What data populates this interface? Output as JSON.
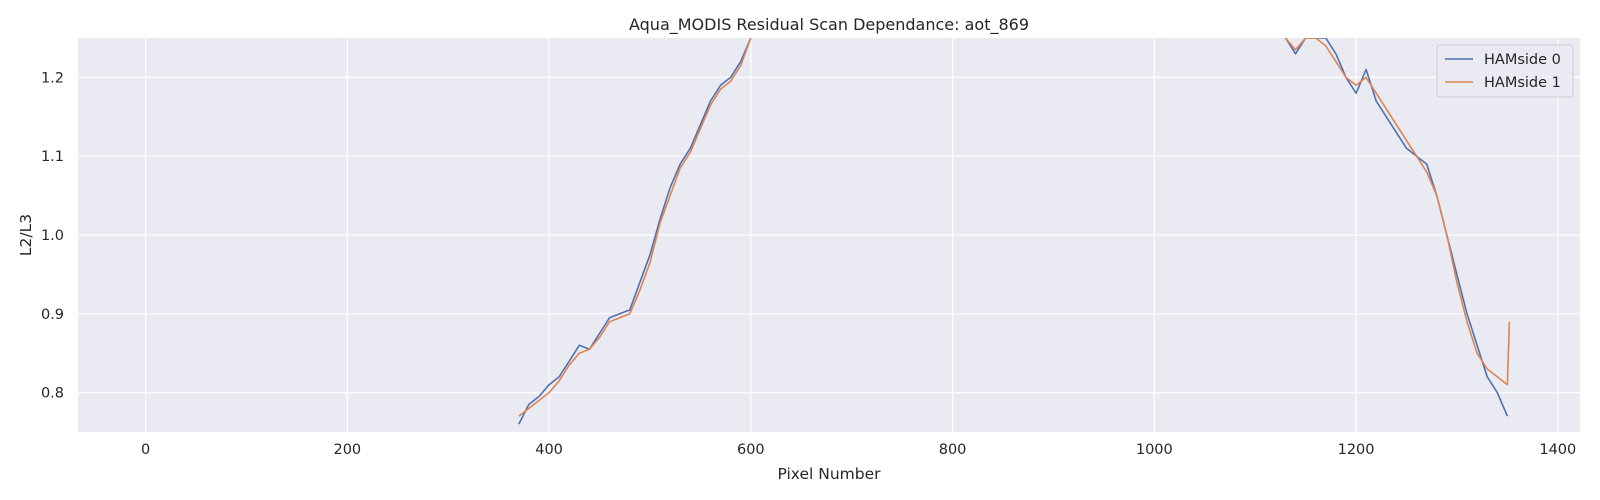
{
  "chart_data": {
    "type": "line",
    "title": "Aqua_MODIS Residual Scan Dependance: aot_869",
    "xlabel": "Pixel Number",
    "ylabel": "L2/L3",
    "xlim": [
      -67,
      1422
    ],
    "ylim": [
      0.75,
      1.25
    ],
    "xticks": [
      0,
      200,
      400,
      600,
      800,
      1000,
      1200,
      1400
    ],
    "yticks": [
      0.8,
      0.9,
      1.0,
      1.1,
      1.2
    ],
    "grid": true,
    "legend_position": "top-right",
    "series": [
      {
        "name": "HAMside 0",
        "color": "#4c72b0",
        "x": [
          370,
          380,
          390,
          400,
          410,
          420,
          430,
          440,
          450,
          460,
          470,
          480,
          490,
          500,
          510,
          520,
          530,
          540,
          550,
          560,
          570,
          580,
          590,
          600,
          1130,
          1140,
          1150,
          1160,
          1170,
          1180,
          1190,
          1200,
          1210,
          1220,
          1230,
          1240,
          1250,
          1260,
          1270,
          1280,
          1290,
          1300,
          1310,
          1320,
          1330,
          1340,
          1350
        ],
        "y": [
          0.76,
          0.785,
          0.795,
          0.81,
          0.82,
          0.84,
          0.86,
          0.855,
          0.875,
          0.895,
          0.9,
          0.905,
          0.94,
          0.975,
          1.02,
          1.06,
          1.09,
          1.11,
          1.14,
          1.17,
          1.19,
          1.2,
          1.22,
          1.25,
          1.25,
          1.23,
          1.25,
          1.25,
          1.25,
          1.23,
          1.2,
          1.18,
          1.21,
          1.17,
          1.15,
          1.13,
          1.11,
          1.1,
          1.09,
          1.05,
          1.0,
          0.95,
          0.9,
          0.86,
          0.82,
          0.8,
          0.77
        ]
      },
      {
        "name": "HAMside 1",
        "color": "#dd8452",
        "x": [
          370,
          380,
          390,
          400,
          410,
          420,
          430,
          440,
          450,
          460,
          470,
          480,
          490,
          500,
          510,
          520,
          530,
          540,
          550,
          560,
          570,
          580,
          590,
          600,
          1130,
          1140,
          1150,
          1160,
          1170,
          1180,
          1190,
          1200,
          1210,
          1220,
          1230,
          1240,
          1250,
          1260,
          1270,
          1280,
          1290,
          1300,
          1310,
          1320,
          1330,
          1340,
          1350,
          1352
        ],
        "y": [
          0.77,
          0.78,
          0.79,
          0.8,
          0.815,
          0.835,
          0.85,
          0.855,
          0.87,
          0.89,
          0.895,
          0.9,
          0.93,
          0.965,
          1.015,
          1.05,
          1.085,
          1.105,
          1.135,
          1.165,
          1.185,
          1.195,
          1.215,
          1.25,
          1.25,
          1.235,
          1.25,
          1.25,
          1.24,
          1.22,
          1.2,
          1.19,
          1.2,
          1.18,
          1.16,
          1.14,
          1.12,
          1.1,
          1.08,
          1.05,
          1.0,
          0.94,
          0.89,
          0.85,
          0.83,
          0.82,
          0.81,
          0.89
        ]
      }
    ]
  }
}
